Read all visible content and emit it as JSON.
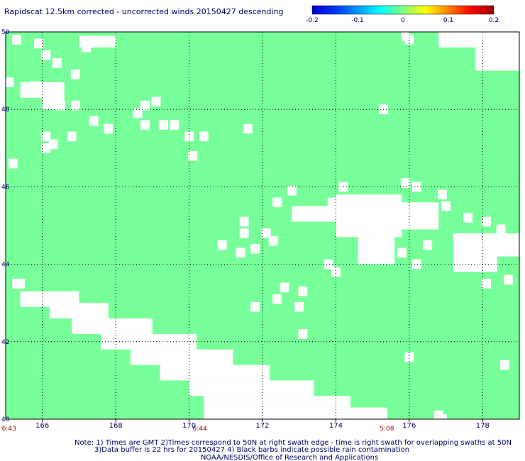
{
  "chart_data": {
    "type": "heatmap",
    "title": "Rapidscat 12.5km corrected - uncorrected winds 20150427 descending",
    "colorbar": {
      "ticks": [
        "-0.2",
        "-0.1",
        "0",
        "0.1",
        "0.2"
      ],
      "range": [
        -0.2,
        0.2
      ],
      "colors": [
        "#0000cc",
        "#0033ff",
        "#0099ff",
        "#00ffff",
        "#80ff80",
        "#ffff00",
        "#ff8000",
        "#ff0000",
        "#990000"
      ]
    },
    "xlim": [
      165.0,
      179.0
    ],
    "ylim": [
      40.0,
      50.0
    ],
    "xticks": [
      166,
      168,
      170,
      172,
      174,
      176,
      178
    ],
    "xtick_labels": [
      "166",
      "168",
      "170",
      "172",
      "174",
      "176",
      "178"
    ],
    "yticks": [
      40,
      42,
      44,
      46,
      48,
      50
    ],
    "ytick_labels": [
      "40",
      "42",
      "44",
      "46",
      "48",
      "50"
    ],
    "grid": true,
    "field_color": "#77ff99",
    "field_value": 0,
    "cell_size_deg": 0.25,
    "missing_regions": [
      {
        "lon": [
          165.4,
          167.0
        ],
        "lat": [
          42.9,
          43.3
        ]
      },
      {
        "lon": [
          166.2,
          167.8
        ],
        "lat": [
          42.6,
          43.0
        ]
      },
      {
        "lon": [
          166.8,
          169.0
        ],
        "lat": [
          42.2,
          42.6
        ]
      },
      {
        "lon": [
          167.6,
          170.2
        ],
        "lat": [
          41.8,
          42.2
        ]
      },
      {
        "lon": [
          168.4,
          171.2
        ],
        "lat": [
          41.4,
          41.8
        ]
      },
      {
        "lon": [
          169.2,
          172.2
        ],
        "lat": [
          41.0,
          41.4
        ]
      },
      {
        "lon": [
          170.0,
          173.4
        ],
        "lat": [
          40.6,
          41.0
        ]
      },
      {
        "lon": [
          170.4,
          174.4
        ],
        "lat": [
          40.3,
          40.6
        ]
      },
      {
        "lon": [
          170.4,
          175.4
        ],
        "lat": [
          40.0,
          40.3
        ]
      },
      {
        "lon": [
          174.0,
          175.8
        ],
        "lat": [
          44.7,
          45.8
        ]
      },
      {
        "lon": [
          175.8,
          176.8
        ],
        "lat": [
          44.9,
          45.6
        ]
      },
      {
        "lon": [
          174.6,
          175.6
        ],
        "lat": [
          44.0,
          44.7
        ]
      },
      {
        "lon": [
          177.2,
          178.4
        ],
        "lat": [
          43.8,
          44.8
        ]
      },
      {
        "lon": [
          178.0,
          179.0
        ],
        "lat": [
          44.2,
          44.8
        ]
      },
      {
        "lon": [
          177.8,
          179.0
        ],
        "lat": [
          49.0,
          50.0
        ]
      },
      {
        "lon": [
          176.8,
          177.8
        ],
        "lat": [
          49.6,
          50.0
        ]
      },
      {
        "lon": [
          165.4,
          166.6
        ],
        "lat": [
          48.3,
          48.7
        ]
      },
      {
        "lon": [
          166.0,
          166.6
        ],
        "lat": [
          48.0,
          48.3
        ]
      },
      {
        "lon": [
          172.8,
          174.0
        ],
        "lat": [
          45.1,
          45.5
        ]
      },
      {
        "lon": [
          167.0,
          168.0
        ],
        "lat": [
          49.6,
          49.9
        ]
      }
    ],
    "missing_cells": [
      [
        165.3,
        49.8
      ],
      [
        165.9,
        49.7
      ],
      [
        166.1,
        49.4
      ],
      [
        166.4,
        49.2
      ],
      [
        166.9,
        48.9
      ],
      [
        167.2,
        49.6
      ],
      [
        165.1,
        48.7
      ],
      [
        166.5,
        48.1
      ],
      [
        166.9,
        48.1
      ],
      [
        167.4,
        47.7
      ],
      [
        167.8,
        47.5
      ],
      [
        168.6,
        47.9
      ],
      [
        168.8,
        47.6
      ],
      [
        169.3,
        47.6
      ],
      [
        169.6,
        47.6
      ],
      [
        170.0,
        47.3
      ],
      [
        170.4,
        47.3
      ],
      [
        171.6,
        47.5
      ],
      [
        166.1,
        47.3
      ],
      [
        166.3,
        47.1
      ],
      [
        166.8,
        47.3
      ],
      [
        165.2,
        46.6
      ],
      [
        166.1,
        47.0
      ],
      [
        170.1,
        46.8
      ],
      [
        168.8,
        48.1
      ],
      [
        169.1,
        48.2
      ],
      [
        165.8,
        48.6
      ],
      [
        166.4,
        48.3
      ],
      [
        175.3,
        48.0
      ],
      [
        170.9,
        44.5
      ],
      [
        171.4,
        44.3
      ],
      [
        172.6,
        43.4
      ],
      [
        171.8,
        44.4
      ],
      [
        172.1,
        44.8
      ],
      [
        173.8,
        44.0
      ],
      [
        174.0,
        43.8
      ],
      [
        173.0,
        42.9
      ],
      [
        171.8,
        42.9
      ],
      [
        172.4,
        43.1
      ],
      [
        173.1,
        43.3
      ],
      [
        171.5,
        44.8
      ],
      [
        172.3,
        44.6
      ],
      [
        176.5,
        44.5
      ],
      [
        175.8,
        44.3
      ],
      [
        176.2,
        44.0
      ],
      [
        178.1,
        43.5
      ],
      [
        178.7,
        43.6
      ],
      [
        178.6,
        41.4
      ],
      [
        176.0,
        41.6
      ],
      [
        173.1,
        42.2
      ],
      [
        176.8,
        40.1
      ],
      [
        176.9,
        40.0
      ],
      [
        175.9,
        46.1
      ],
      [
        176.2,
        46.0
      ],
      [
        176.9,
        45.8
      ],
      [
        177.0,
        45.5
      ],
      [
        177.6,
        45.2
      ],
      [
        178.1,
        45.1
      ],
      [
        178.5,
        44.9
      ],
      [
        177.8,
        44.3
      ],
      [
        174.2,
        46.0
      ],
      [
        173.9,
        45.6
      ],
      [
        172.8,
        45.9
      ],
      [
        171.5,
        45.1
      ],
      [
        172.4,
        45.6
      ],
      [
        175.1,
        44.7
      ],
      [
        176.0,
        49.8
      ],
      [
        175.9,
        49.9
      ],
      [
        165.3,
        43.5
      ],
      [
        165.4,
        43.5
      ]
    ]
  },
  "time_labels": [
    {
      "text": "6:43",
      "lon": 165.05
    },
    {
      "text": "6:44",
      "lon": 170.25
    },
    {
      "text": "5:08",
      "lon": 175.35
    }
  ],
  "notes": [
    "Note: 1) Times are GMT 2)Times correspond to 50N at right swath edge - time is right swath for overlapping swaths at 50N",
    "3)Data buffer is 22 hrs for 20150427 4) Black barbs indicate possible rain contamination",
    "NOAA/NESDIS/Office of Research and Applications"
  ],
  "colors": {
    "frame": "#000000",
    "grid": "#000000",
    "title": "#000066",
    "tick_label": "#000066",
    "time_label": "#990000",
    "note": "#000066",
    "missing": "#ffffff"
  }
}
